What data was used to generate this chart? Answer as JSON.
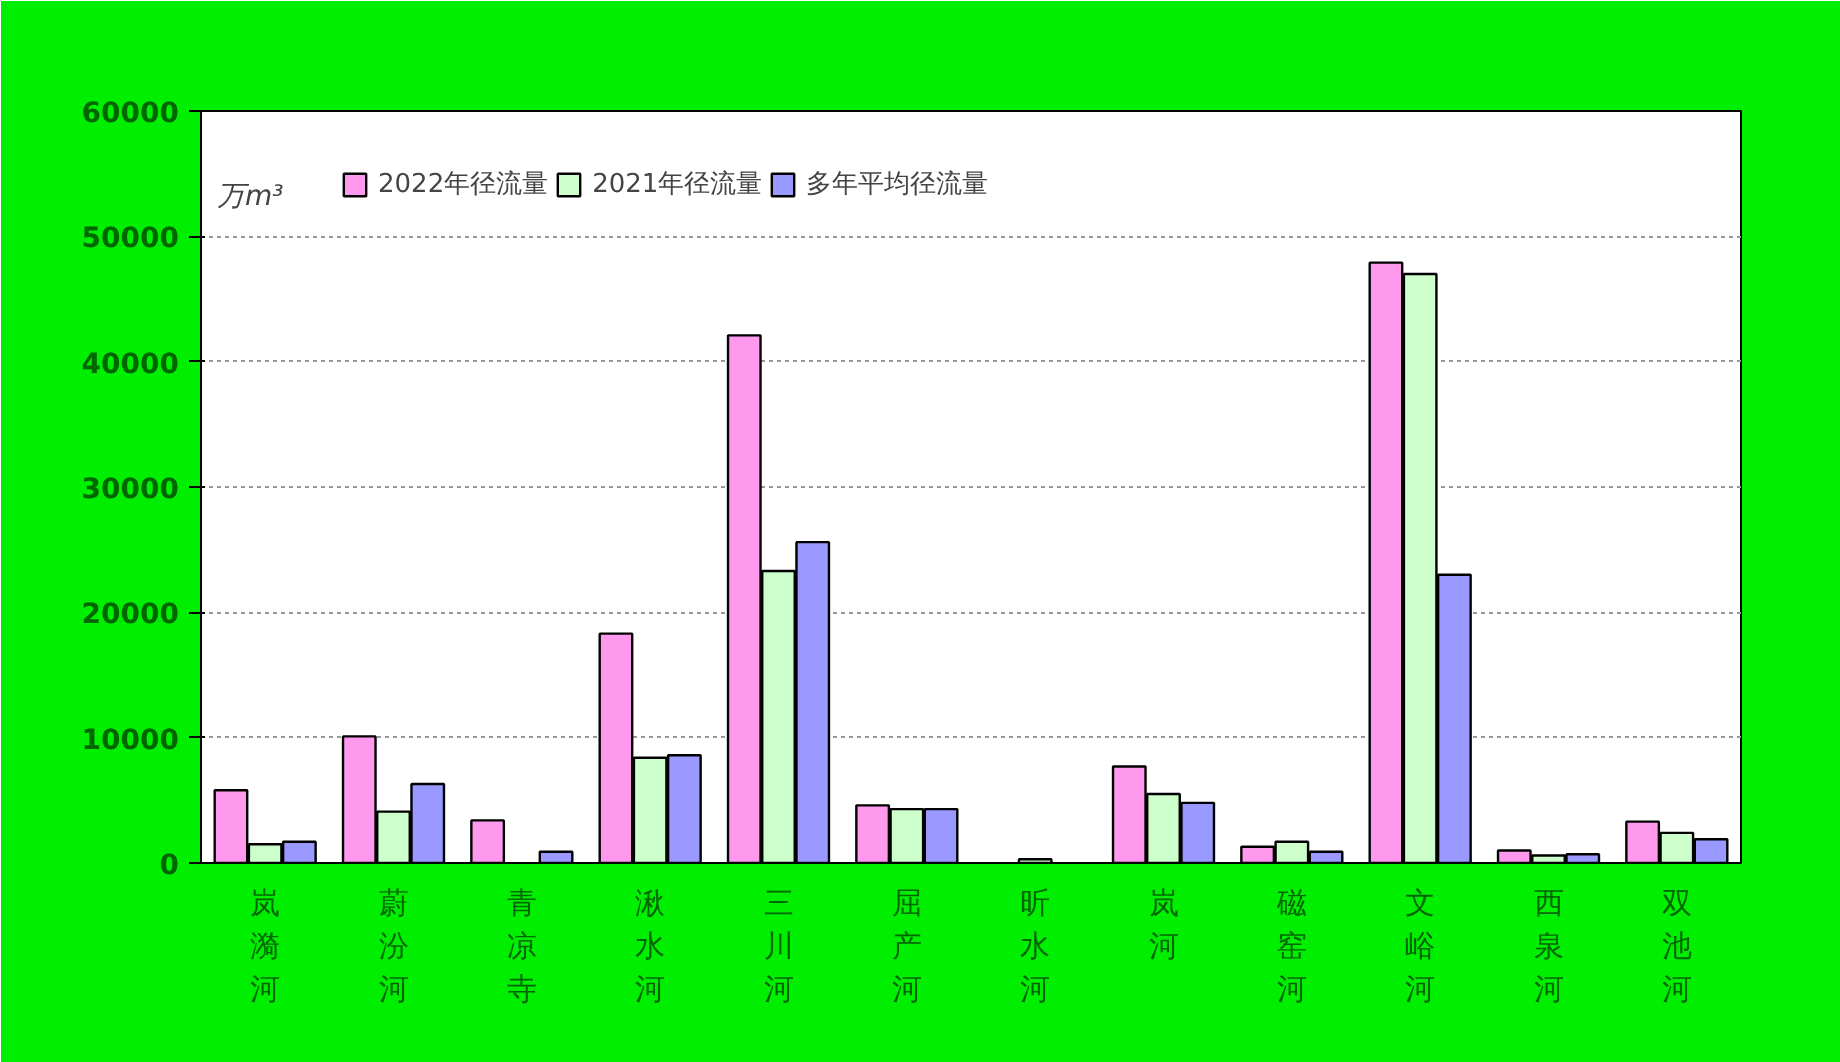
{
  "chart_data": {
    "type": "bar",
    "categories": [
      "岚漪河",
      "蔚汾河",
      "青凉寺",
      "湫水河",
      "三川河",
      "屈产河",
      "昕水河",
      "岚河",
      "磁窑河",
      "文峪河",
      "西泉河",
      "双池河"
    ],
    "series": [
      {
        "name": "2022年径流量",
        "color": "#ff99ee",
        "values": [
          5800,
          10100,
          3400,
          18300,
          42100,
          4600,
          null,
          7700,
          1300,
          47900,
          1000,
          3300
        ]
      },
      {
        "name": "2021年径流量",
        "color": "#ccffcc",
        "values": [
          1500,
          4100,
          null,
          8400,
          23300,
          4300,
          300,
          5500,
          1700,
          47000,
          600,
          2400
        ]
      },
      {
        "name": "多年平均径流量",
        "color": "#9999ff",
        "values": [
          1700,
          6300,
          900,
          8600,
          25600,
          4300,
          null,
          4800,
          900,
          23000,
          700,
          1900
        ]
      }
    ],
    "ylim": [
      0,
      60000
    ],
    "yticks": [
      0,
      10000,
      20000,
      30000,
      40000,
      50000,
      60000
    ],
    "grid": "y",
    "legend": "top left",
    "annotations": [
      "万m³"
    ]
  }
}
